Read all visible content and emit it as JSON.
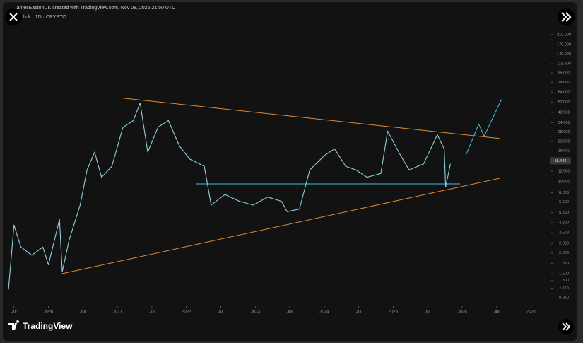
{
  "header": {
    "attribution": "JamesEastonUK created with TradingView.com, Nov 08, 2025 21:50 UTC",
    "symbol": "link · 1D · CRYPTO"
  },
  "chart_data": {
    "type": "line",
    "log_scale": true,
    "color": "#8fd0dc",
    "x": [
      2019.42,
      2019.5,
      2019.6,
      2019.76,
      2019.92,
      2020.0,
      2020.16,
      2020.2,
      2020.3,
      2020.46,
      2020.56,
      2020.67,
      2020.77,
      2020.92,
      2021.08,
      2021.23,
      2021.33,
      2021.44,
      2021.59,
      2021.74,
      2021.9,
      2022.05,
      2022.26,
      2022.36,
      2022.56,
      2022.77,
      2022.97,
      2023.18,
      2023.38,
      2023.46,
      2023.64,
      2023.79,
      2024.0,
      2024.15,
      2024.31,
      2024.46,
      2024.62,
      2024.82,
      2024.92,
      2025.08,
      2025.23,
      2025.44,
      2025.64,
      2025.74,
      2025.76,
      2025.83
    ],
    "values": [
      1.08,
      4.1,
      2.6,
      2.2,
      2.6,
      1.8,
      4.6,
      1.56,
      3.0,
      6.2,
      12.8,
      18.5,
      11,
      13.8,
      30.8,
      35.5,
      51,
      18.5,
      31,
      35.5,
      21,
      16,
      13.8,
      6.2,
      7.7,
      6.7,
      6.2,
      7.3,
      6.7,
      5.4,
      5.7,
      12.8,
      17.2,
      19.8,
      13.8,
      12.8,
      11,
      11.9,
      28.6,
      18.5,
      12.8,
      14.5,
      26.5,
      19.8,
      9,
      14.5
    ],
    "last_price": 15.442,
    "xlim": [
      2019.4,
      2027.24
    ],
    "ylim": [
      0.8,
      320
    ],
    "xticks": [
      {
        "value": 2019.5,
        "label": "Jul"
      },
      2020,
      {
        "value": 2020.5,
        "label": "Jul"
      },
      2021,
      {
        "value": 2021.5,
        "label": "Jul"
      },
      2022,
      {
        "value": 2022.5,
        "label": "Jul"
      },
      2023,
      {
        "value": 2023.5,
        "label": "Jul"
      },
      2024,
      {
        "value": 2024.5,
        "label": "Jul"
      },
      2025,
      {
        "value": 2025.5,
        "label": "Jul"
      },
      2026,
      {
        "value": 2026.5,
        "label": "Jul"
      },
      2027
    ],
    "yticks": [
      {
        "value": 210,
        "label": "210.000"
      },
      {
        "value": 170,
        "label": "170.000"
      },
      {
        "value": 140,
        "label": "140.000"
      },
      {
        "value": 115,
        "label": "115.000"
      },
      {
        "value": 95,
        "label": "95.000"
      },
      {
        "value": 78,
        "label": "78.000"
      },
      {
        "value": 64,
        "label": "64.000"
      },
      {
        "value": 52,
        "label": "52.000"
      },
      {
        "value": 42,
        "label": "42.000"
      },
      {
        "value": 34,
        "label": "34.000"
      },
      {
        "value": 28,
        "label": "28.000"
      },
      {
        "value": 23,
        "label": "23.000"
      },
      {
        "value": 19,
        "label": "19.000"
      },
      {
        "value": 12.5,
        "label": "12.500"
      },
      {
        "value": 10,
        "label": "10.000"
      },
      {
        "value": 8,
        "label": "8.000"
      },
      {
        "value": 6.6,
        "label": "6.600"
      },
      {
        "value": 5.3,
        "label": "5.300"
      },
      {
        "value": 4.3,
        "label": "4.300"
      },
      {
        "value": 3.5,
        "label": "3.500"
      },
      {
        "value": 2.8,
        "label": "2.800"
      },
      {
        "value": 2.3,
        "label": "2.300"
      },
      {
        "value": 1.85,
        "label": "1.850"
      },
      {
        "value": 1.5,
        "label": "1.500"
      },
      {
        "value": 1.3,
        "label": "1.300"
      },
      {
        "value": 1.11,
        "label": "1.110"
      },
      {
        "value": 0.91,
        "label": "0.910"
      }
    ],
    "drawings": [
      {
        "color": "#e08a32",
        "x": [
          2021.05,
          2026.54
        ],
        "values": [
          56.7,
          24.5
        ]
      },
      {
        "color": "#e08a32",
        "x": [
          2020.18,
          2026.55
        ],
        "values": [
          1.49,
          10.8
        ]
      },
      {
        "color": "#3fc3d8",
        "x": [
          2022.14,
          2025.97
        ],
        "values": [
          9.6,
          9.6
        ]
      },
      {
        "color": "#3fc3d8",
        "x": [
          2026.06,
          2026.24,
          2026.32,
          2026.57
        ],
        "values": [
          17.7,
          33,
          25.7,
          55
        ]
      }
    ]
  },
  "footer": {
    "brand": "TradingView"
  }
}
